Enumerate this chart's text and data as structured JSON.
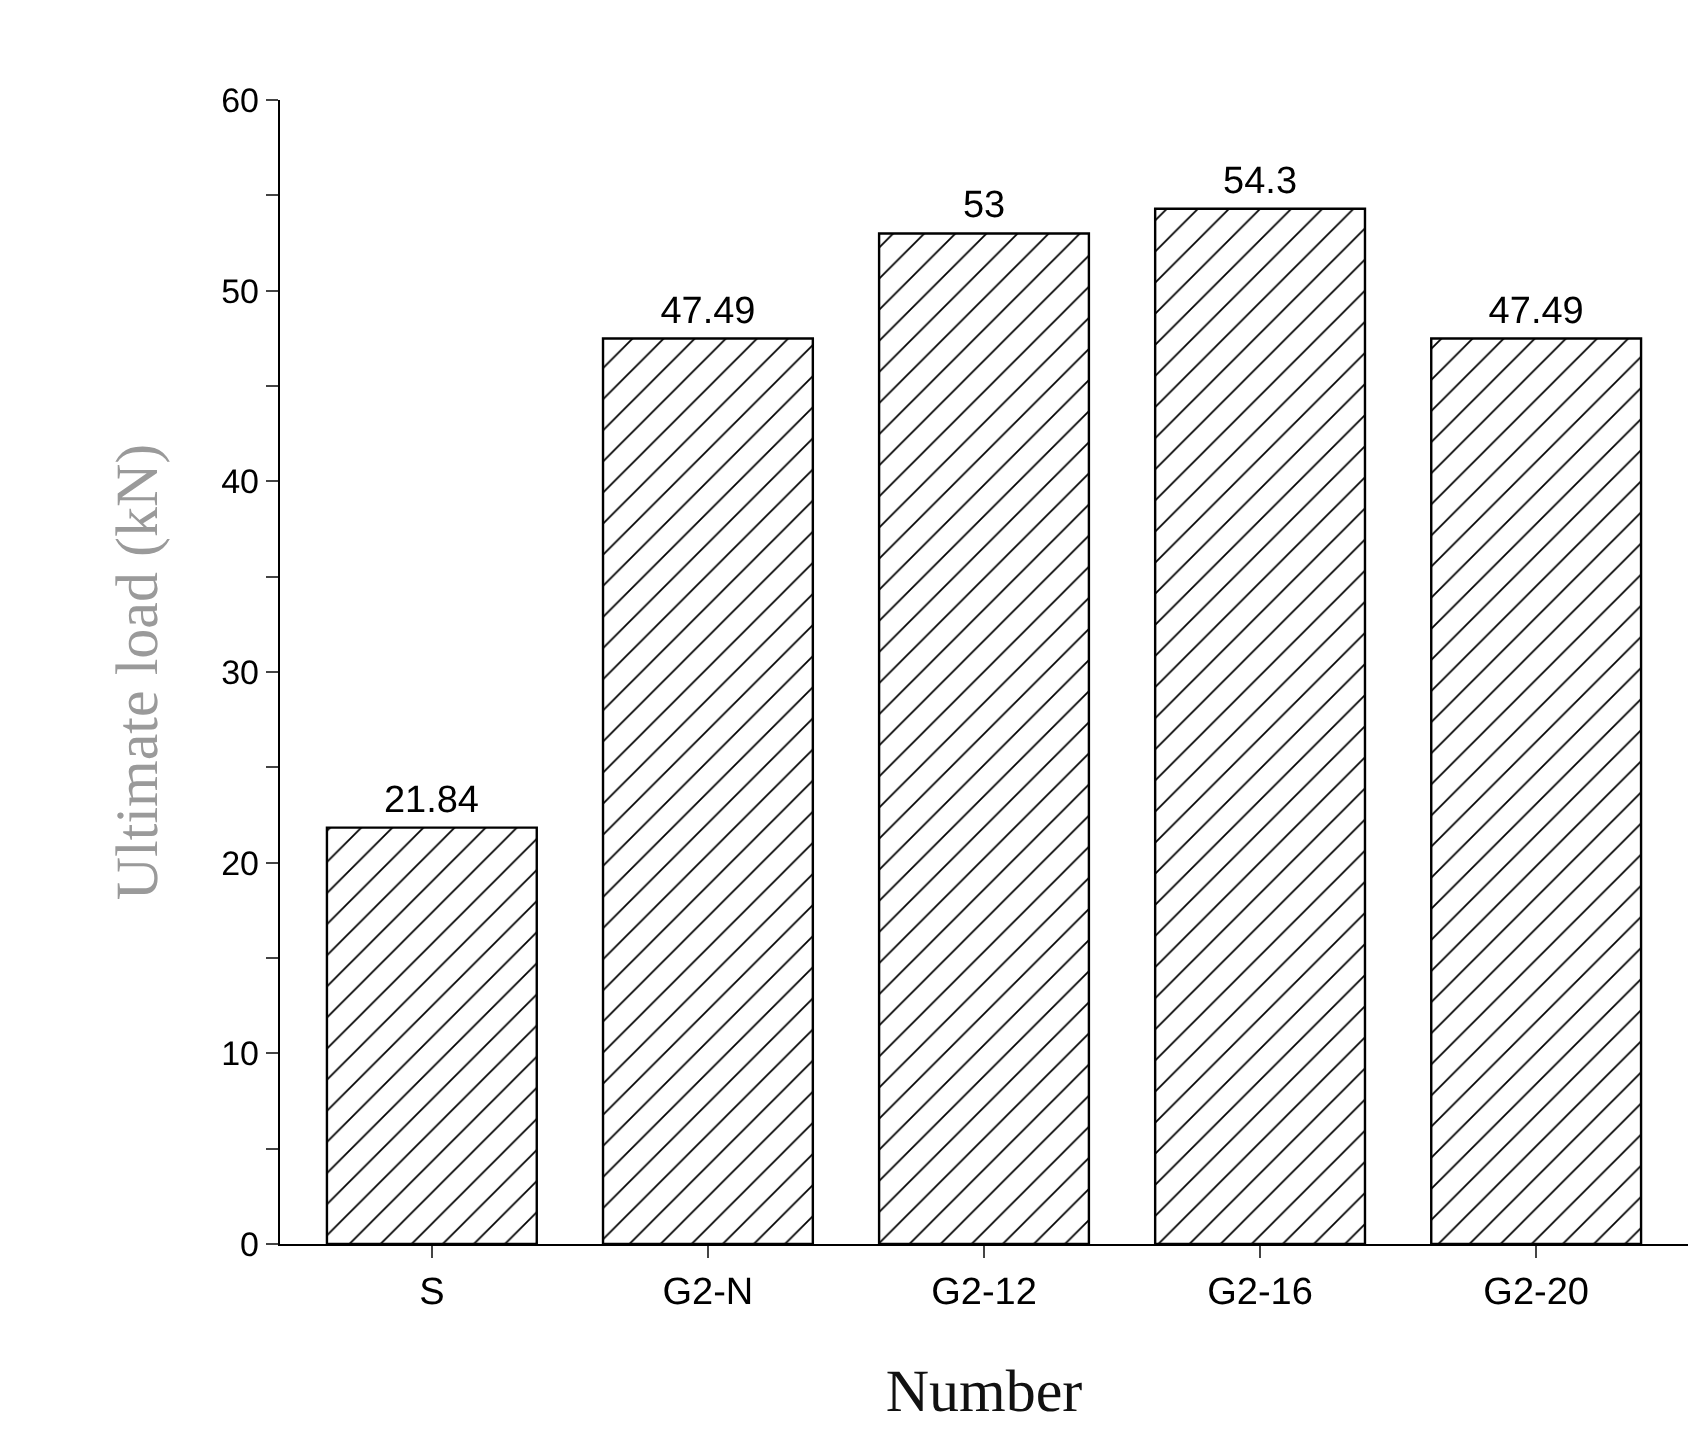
{
  "chart_data": {
    "type": "bar",
    "xlabel": "Number",
    "ylabel": "Ultimate load (kN)",
    "categories": [
      "S",
      "G2-N",
      "G2-12",
      "G2-16",
      "G2-20"
    ],
    "values": [
      21.84,
      47.49,
      53,
      54.3,
      47.49
    ],
    "color": "#000000",
    "data_labels": true,
    "ylim": [
      0,
      60
    ],
    "yticks": [
      0,
      {
        "value": 5,
        "label": null
      },
      10,
      {
        "value": 15,
        "label": null
      },
      20,
      {
        "value": 25,
        "label": null
      },
      30,
      {
        "value": 35,
        "label": null
      },
      40,
      {
        "value": 45,
        "label": null
      },
      50,
      {
        "value": 55,
        "label": null
      },
      60
    ],
    "grid": false,
    "legend": false
  }
}
